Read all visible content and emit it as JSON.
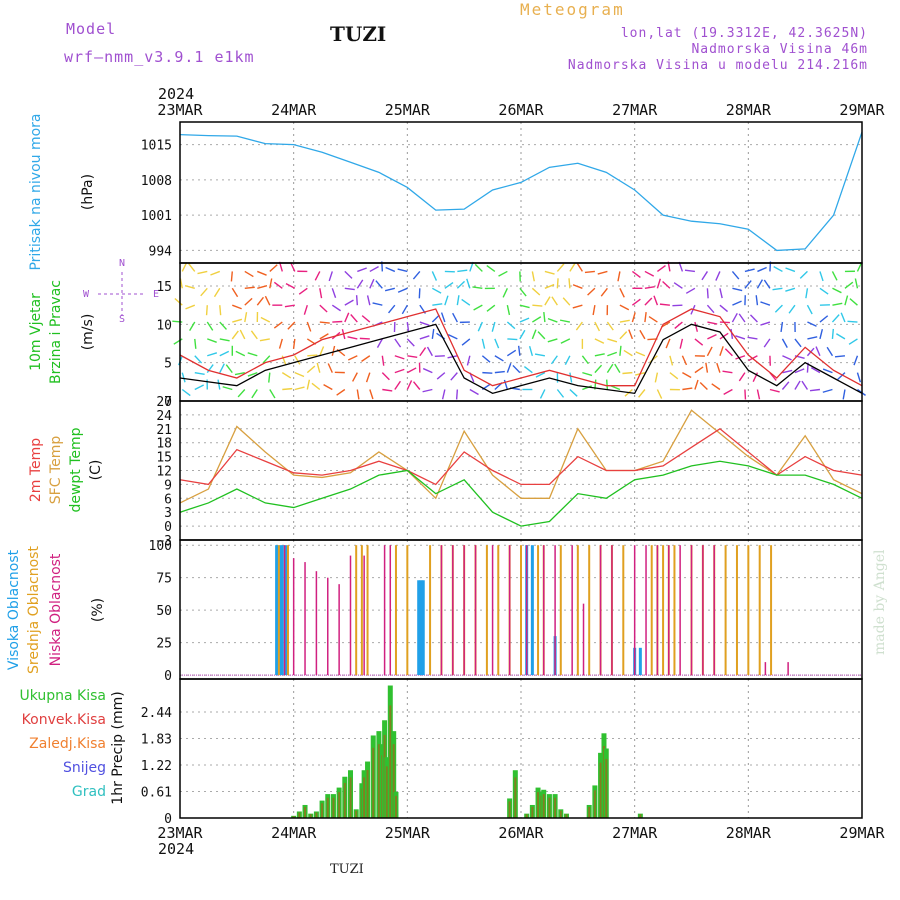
{
  "header": {
    "model_label": "Model",
    "model_version": "wrf—nmm_v3.9.1  e1km",
    "station": "TUZI",
    "product": "Meteogram",
    "lonlat": "lon,lat (19.3312E, 42.3625N)",
    "elevation": "Nadmorska Visina 46m",
    "model_elevation": "Nadmorska Visina u modelu 214.216m"
  },
  "footer": {
    "station": "TUZI",
    "credit": "made by Angel"
  },
  "time_axis": {
    "year": "2024",
    "dates": [
      "23MAR",
      "24MAR",
      "25MAR",
      "26MAR",
      "27MAR",
      "28MAR",
      "29MAR"
    ]
  },
  "colors": {
    "pressure": "#30a8e8",
    "wind_speed": "#000000",
    "gust": "#e03030",
    "t2m": "#e84040",
    "tsfc": "#d8a040",
    "dewpt": "#20c020",
    "cloud_high": "#20a0e8",
    "cloud_mid": "#e0a020",
    "cloud_low": "#d02080",
    "precip_total": "#30c030",
    "precip_conv": "#e04040",
    "precip_frz": "#f08030",
    "snow": "#5050e0",
    "hail": "#30c0c0",
    "purple": "#a050d0"
  },
  "chart_data": [
    {
      "type": "line",
      "panel": "pressure",
      "ylabel": "Pritisak na nivou mora",
      "unit": "(hPa)",
      "yticks": [
        994,
        1001,
        1008,
        1015
      ],
      "ylim": [
        991.5,
        1019.5
      ],
      "x": [
        0,
        0.25,
        0.5,
        0.75,
        1,
        1.25,
        1.5,
        1.75,
        2,
        2.25,
        2.5,
        2.75,
        3,
        3.25,
        3.5,
        3.75,
        4,
        4.25,
        4.5,
        4.75,
        5,
        5.25,
        5.5,
        5.75,
        6
      ],
      "series": [
        {
          "values": [
            1017.0,
            1016.8,
            1016.7,
            1015.2,
            1015.0,
            1013.5,
            1011.5,
            1009.5,
            1006.5,
            1002.0,
            1002.2,
            1006.0,
            1007.5,
            1010.5,
            1011.3,
            1009.5,
            1006.0,
            1001.0,
            999.8,
            999.3,
            998.2,
            994.0,
            994.3,
            1001.0,
            1017.5
          ]
        }
      ]
    },
    {
      "type": "line",
      "panel": "wind",
      "ylabel": [
        "10m Vjetar",
        "Brzina i Pravac"
      ],
      "unit": "(m/s)",
      "compass": [
        "N",
        "S",
        "W",
        "E"
      ],
      "yticks": [
        0,
        5,
        10,
        15
      ],
      "ylim": [
        0,
        18
      ],
      "x": [
        0,
        0.25,
        0.5,
        0.75,
        1,
        1.25,
        1.5,
        1.75,
        2,
        2.25,
        2.5,
        2.75,
        3,
        3.25,
        3.5,
        3.75,
        4,
        4.25,
        4.5,
        4.75,
        5,
        5.25,
        5.5,
        5.75,
        6
      ],
      "series": [
        {
          "values": [
            3,
            2.5,
            2,
            4,
            5,
            6,
            7,
            8,
            9,
            10,
            3,
            1,
            2,
            3,
            2,
            1.5,
            1,
            8,
            10,
            9,
            4,
            2,
            5,
            3,
            1
          ]
        },
        {
          "values": [
            6,
            4,
            3,
            5,
            6,
            8,
            9,
            10,
            11,
            12,
            4,
            2,
            3,
            4,
            3,
            2,
            2,
            10,
            12,
            11,
            6,
            3,
            7,
            4,
            2
          ]
        }
      ]
    },
    {
      "type": "line",
      "panel": "temperature",
      "ylabel": [
        "2m Temp",
        "SFC Temp",
        "dewpt Temp"
      ],
      "unit": "(C)",
      "yticks": [
        -3,
        0,
        3,
        6,
        9,
        12,
        15,
        18,
        21,
        24,
        27
      ],
      "ylim": [
        -3,
        27
      ],
      "x": [
        0,
        0.25,
        0.5,
        0.75,
        1,
        1.25,
        1.5,
        1.75,
        2,
        2.25,
        2.5,
        2.75,
        3,
        3.25,
        3.5,
        3.75,
        4,
        4.25,
        4.5,
        4.75,
        5,
        5.25,
        5.5,
        5.75,
        6
      ],
      "series": [
        {
          "values": [
            10,
            9,
            16.5,
            14,
            11.5,
            11,
            12,
            14,
            12,
            9,
            16,
            12,
            9,
            9,
            15,
            12,
            12,
            13,
            17,
            21,
            16,
            11,
            15,
            12,
            11
          ]
        },
        {
          "values": [
            5,
            8,
            21.5,
            16,
            11,
            10.5,
            11.5,
            16,
            12,
            6,
            20.5,
            11,
            6,
            6,
            21,
            12,
            12,
            14,
            25,
            20,
            15,
            11,
            19.5,
            10,
            7
          ]
        },
        {
          "values": [
            3,
            5,
            8,
            5,
            4,
            6,
            8,
            11,
            12,
            7,
            10,
            3,
            0,
            1,
            7,
            6,
            10,
            11,
            13,
            14,
            13,
            11,
            11,
            9,
            6
          ]
        }
      ]
    },
    {
      "type": "bar",
      "panel": "cloud",
      "ylabel": [
        "Visoka Oblacnost",
        "Srednja Oblacnost",
        "Niska Oblacnost"
      ],
      "unit": "(%)",
      "yticks": [
        0,
        25,
        50,
        75,
        100
      ],
      "ylim": [
        -3,
        104
      ],
      "series": [
        {
          "values": [
            [
              0.85,
              100
            ],
            [
              0.88,
              100
            ],
            [
              0.9,
              100
            ],
            [
              0.93,
              100
            ],
            [
              2.1,
              73
            ],
            [
              2.12,
              73
            ],
            [
              2.14,
              73
            ],
            [
              3.05,
              100
            ],
            [
              3.1,
              100
            ],
            [
              3.3,
              30
            ],
            [
              4.0,
              21
            ],
            [
              4.05,
              21
            ]
          ]
        },
        {
          "values": [
            [
              0.87,
              100
            ],
            [
              0.95,
              100
            ],
            [
              1.55,
              100
            ],
            [
              1.6,
              100
            ],
            [
              1.65,
              100
            ],
            [
              1.9,
              100
            ],
            [
              2.0,
              100
            ],
            [
              2.2,
              100
            ],
            [
              2.3,
              100
            ],
            [
              2.4,
              100
            ],
            [
              2.5,
              100
            ],
            [
              2.6,
              100
            ],
            [
              2.7,
              100
            ],
            [
              2.8,
              100
            ],
            [
              2.9,
              100
            ],
            [
              3.0,
              100
            ],
            [
              3.15,
              100
            ],
            [
              3.2,
              100
            ],
            [
              3.35,
              100
            ],
            [
              3.5,
              100
            ],
            [
              3.6,
              100
            ],
            [
              3.7,
              100
            ],
            [
              3.8,
              100
            ],
            [
              3.9,
              100
            ],
            [
              4.15,
              100
            ],
            [
              4.2,
              100
            ],
            [
              4.25,
              100
            ],
            [
              4.3,
              100
            ],
            [
              4.35,
              100
            ],
            [
              4.5,
              100
            ],
            [
              4.6,
              100
            ],
            [
              4.7,
              100
            ],
            [
              4.8,
              100
            ],
            [
              4.9,
              100
            ],
            [
              5.0,
              100
            ],
            [
              5.1,
              100
            ],
            [
              5.2,
              100
            ]
          ]
        },
        {
          "values": [
            [
              0.92,
              100
            ],
            [
              1.0,
              90
            ],
            [
              1.1,
              87
            ],
            [
              1.2,
              80
            ],
            [
              1.3,
              75
            ],
            [
              1.4,
              70
            ],
            [
              1.5,
              92
            ],
            [
              1.62,
              92
            ],
            [
              1.8,
              100
            ],
            [
              1.85,
              100
            ],
            [
              2.3,
              100
            ],
            [
              2.4,
              100
            ],
            [
              2.5,
              100
            ],
            [
              2.6,
              100
            ],
            [
              2.75,
              100
            ],
            [
              2.9,
              100
            ],
            [
              3.05,
              100
            ],
            [
              3.2,
              100
            ],
            [
              3.3,
              100
            ],
            [
              3.45,
              100
            ],
            [
              3.55,
              55
            ],
            [
              3.7,
              100
            ],
            [
              3.8,
              100
            ],
            [
              4.0,
              100
            ],
            [
              4.1,
              100
            ],
            [
              4.2,
              100
            ],
            [
              4.3,
              100
            ],
            [
              4.4,
              100
            ],
            [
              4.5,
              100
            ],
            [
              4.6,
              100
            ],
            [
              4.7,
              100
            ],
            [
              5.15,
              10
            ],
            [
              5.35,
              10
            ]
          ]
        }
      ]
    },
    {
      "type": "bar",
      "panel": "precipitation",
      "ylabel": "1hr Precip (mm)",
      "legend": [
        "Ukupna Kisa",
        "Konvek.Kisa",
        "Zaledj.Kisa",
        "Snijeg",
        "Grad"
      ],
      "yticks": [
        0,
        0.61,
        1.22,
        1.83,
        2.44
      ],
      "ylim": [
        0,
        3.2
      ],
      "series": [
        {
          "values": [
            [
              1.0,
              0.05
            ],
            [
              1.05,
              0.15
            ],
            [
              1.1,
              0.3
            ],
            [
              1.15,
              0.1
            ],
            [
              1.2,
              0.15
            ],
            [
              1.25,
              0.4
            ],
            [
              1.3,
              0.55
            ],
            [
              1.35,
              0.55
            ],
            [
              1.4,
              0.7
            ],
            [
              1.45,
              0.95
            ],
            [
              1.5,
              1.1
            ],
            [
              1.55,
              0.2
            ],
            [
              1.6,
              0.8
            ],
            [
              1.62,
              1.1
            ],
            [
              1.65,
              1.3
            ],
            [
              1.7,
              1.9
            ],
            [
              1.75,
              2.0
            ],
            [
              1.78,
              1.7
            ],
            [
              1.8,
              2.25
            ],
            [
              1.82,
              1.4
            ],
            [
              1.85,
              3.05
            ],
            [
              1.88,
              2.0
            ],
            [
              1.9,
              0.6
            ],
            [
              2.9,
              0.45
            ],
            [
              2.95,
              1.1
            ],
            [
              3.05,
              0.1
            ],
            [
              3.1,
              0.3
            ],
            [
              3.15,
              0.7
            ],
            [
              3.18,
              0.6
            ],
            [
              3.2,
              0.65
            ],
            [
              3.25,
              0.55
            ],
            [
              3.3,
              0.55
            ],
            [
              3.35,
              0.2
            ],
            [
              3.4,
              0.1
            ],
            [
              3.6,
              0.3
            ],
            [
              3.65,
              0.75
            ],
            [
              3.7,
              1.5
            ],
            [
              3.73,
              1.95
            ],
            [
              3.75,
              1.6
            ],
            [
              4.05,
              0.1
            ]
          ]
        }
      ]
    }
  ]
}
